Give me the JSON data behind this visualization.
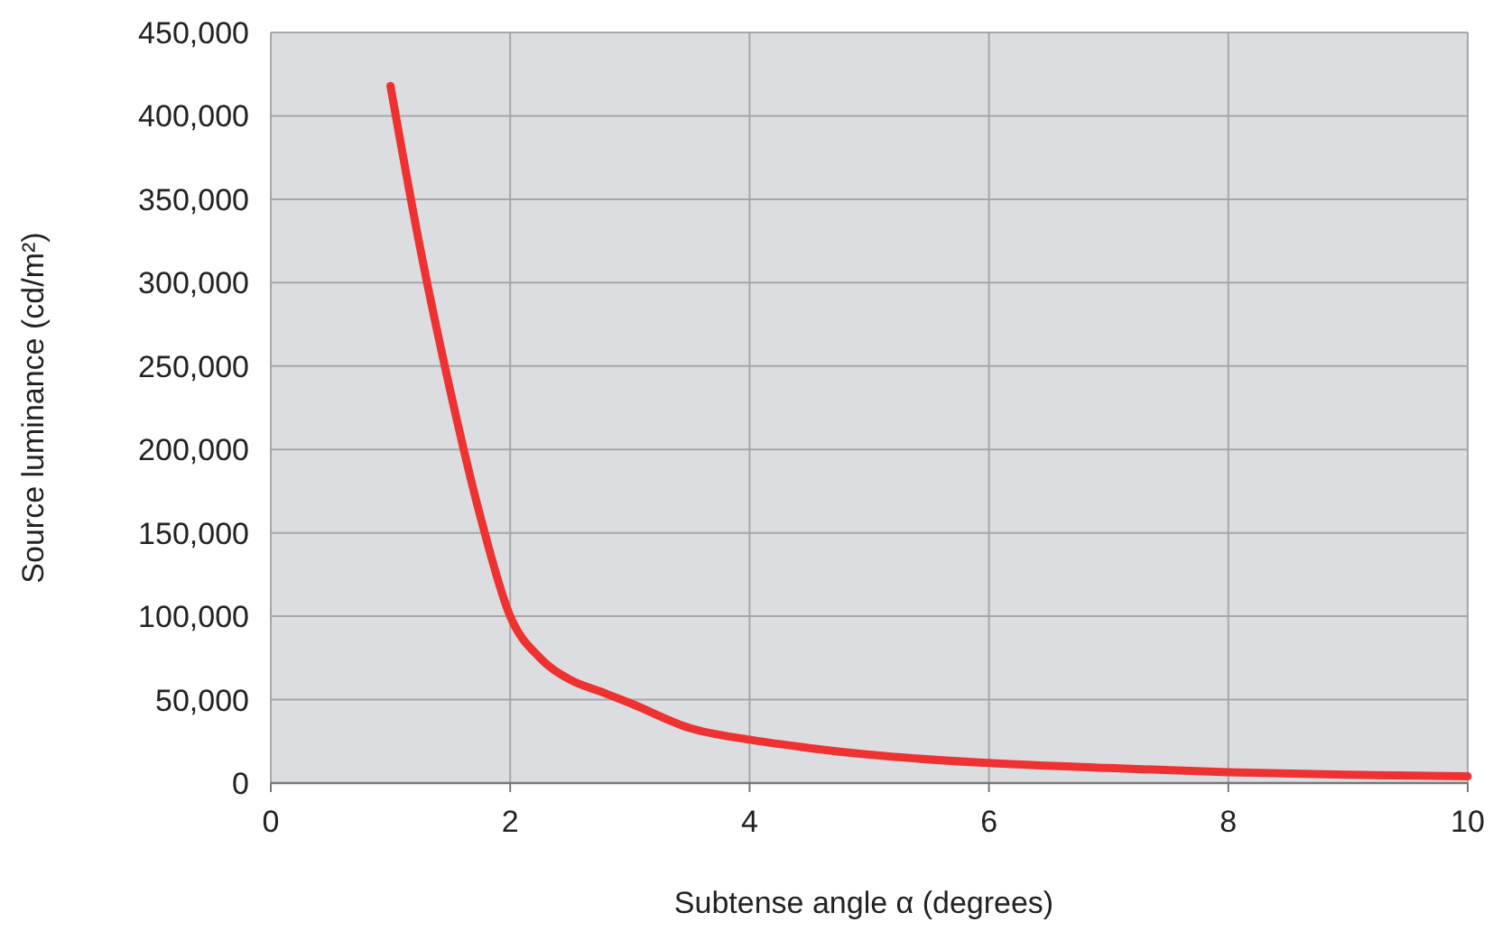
{
  "chart_data": {
    "type": "line",
    "xlabel": "Subtense angle α (degrees)",
    "ylabel": "Source luminance (cd/m²)",
    "x": [
      1,
      1.25,
      1.5,
      1.75,
      2,
      2.25,
      2.5,
      2.75,
      3,
      3.5,
      4,
      4.5,
      5,
      6,
      7,
      8,
      9,
      10
    ],
    "series": [
      {
        "color": "#ee3232",
        "values": [
          418000,
          320000,
          235000,
          160000,
          100000,
          75000,
          62000,
          55000,
          48000,
          33000,
          26000,
          21000,
          17000,
          12000,
          9000,
          6500,
          5000,
          4000
        ]
      }
    ],
    "xlim": [
      0,
      10
    ],
    "xticks": [
      0,
      2,
      4,
      6,
      8,
      10
    ],
    "ylim": [
      0,
      450000
    ],
    "yticks": [
      {
        "value": 0,
        "label": "0"
      },
      {
        "value": 50000,
        "label": "50,000"
      },
      {
        "value": 100000,
        "label": "100,000"
      },
      {
        "value": 150000,
        "label": "150,000"
      },
      {
        "value": 200000,
        "label": "200,000"
      },
      {
        "value": 250000,
        "label": "250,000"
      },
      {
        "value": 300000,
        "label": "300,000"
      },
      {
        "value": 350000,
        "label": "350,000"
      },
      {
        "value": 400000,
        "label": "400,000"
      },
      {
        "value": 450000,
        "label": "450,000"
      }
    ],
    "grid": true,
    "marker": "none",
    "line_style": "solid"
  }
}
